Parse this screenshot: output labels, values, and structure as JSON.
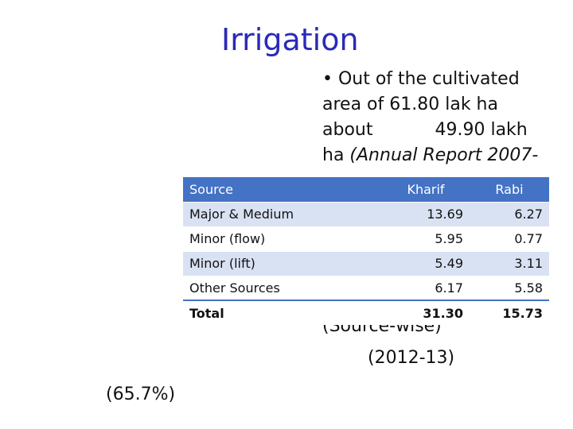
{
  "slide": {
    "title": "Irrigation",
    "bullet": {
      "line1": "• Out of the cultivated",
      "line2": "area of 61.80 lak ha",
      "line3a": "about",
      "line3b": "49.90 lakh",
      "line4": "ha (Annual Report 2007-"
    },
    "partial_1": "(Source-wise)",
    "partial_2": "(2012-13)",
    "partial_3": "(65.7%)"
  },
  "table": {
    "headers": {
      "source": "Source",
      "kharif": "Kharif",
      "rabi": "Rabi"
    },
    "rows": [
      {
        "source": "Major & Medium",
        "kharif": "13.69",
        "rabi": "6.27"
      },
      {
        "source": "Minor (flow)",
        "kharif": "5.95",
        "rabi": "0.77"
      },
      {
        "source": "Minor (lift)",
        "kharif": "5.49",
        "rabi": "3.11"
      },
      {
        "source": "Other Sources",
        "kharif": "6.17",
        "rabi": "5.58"
      }
    ],
    "total": {
      "source": "Total",
      "kharif": "31.30",
      "rabi": "15.73"
    }
  },
  "colors": {
    "title": "#2a2ab8",
    "header_bg": "#4472c4",
    "band": "#d9e2f3"
  }
}
